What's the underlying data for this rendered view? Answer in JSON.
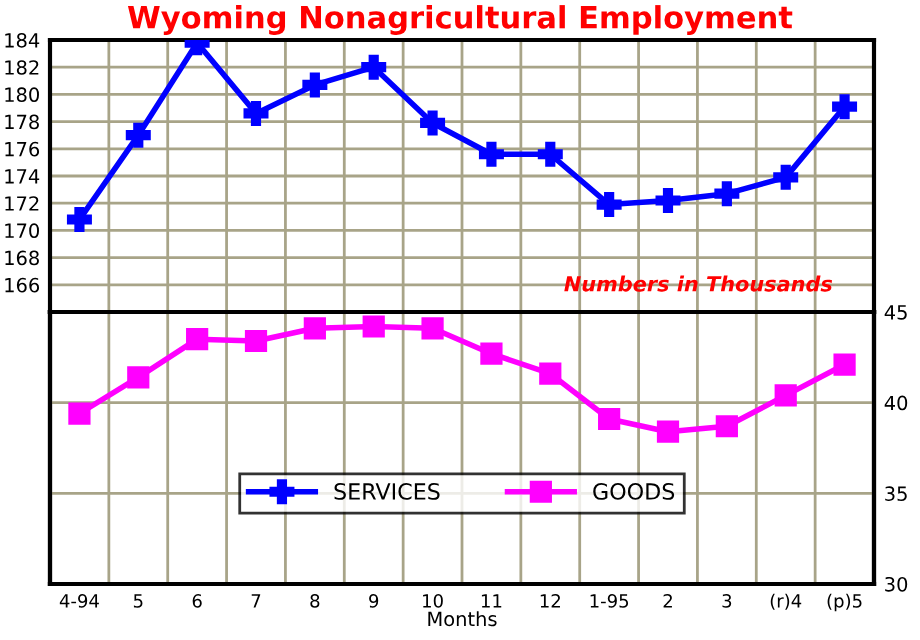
{
  "chart_data": [
    {
      "type": "line",
      "title": "Wyoming Nonagricultural Employment",
      "annotations": [
        "Numbers in Thousands"
      ],
      "categories": [
        null,
        null,
        null,
        null,
        null,
        null,
        null,
        null,
        null,
        null,
        null,
        null,
        null,
        null
      ],
      "series": [
        {
          "name": "SERVICES",
          "color": "#0000ff",
          "marker": "cross",
          "values": [
            170.8,
            177.0,
            183.8,
            178.6,
            180.7,
            182.0,
            177.9,
            175.6,
            175.6,
            171.9,
            172.2,
            172.7,
            173.9,
            179.1
          ]
        }
      ],
      "ylim": [
        164,
        184
      ],
      "yticks": [
        166,
        168,
        170,
        172,
        174,
        176,
        178,
        180,
        182,
        184
      ],
      "grid": true,
      "tick_labels": "y"
    },
    {
      "type": "line",
      "xlabel": "Months",
      "categories": [
        "4-94",
        "5",
        "6",
        "7",
        "8",
        "9",
        "10",
        "11",
        "12",
        "1-95",
        "2",
        "3",
        "(r)4",
        "(p)5"
      ],
      "series": [
        {
          "name": "GOODS",
          "color": "#ff00ff",
          "marker": "square",
          "axis": "y2",
          "values": [
            39.4,
            41.4,
            43.5,
            43.4,
            44.1,
            44.2,
            44.1,
            42.7,
            41.6,
            39.1,
            38.4,
            38.7,
            40.4,
            42.1
          ]
        }
      ],
      "y2lim": [
        30,
        45
      ],
      "y2ticks": [
        30,
        35,
        40,
        45
      ],
      "grid": true,
      "legend": "bottom"
    }
  ]
}
